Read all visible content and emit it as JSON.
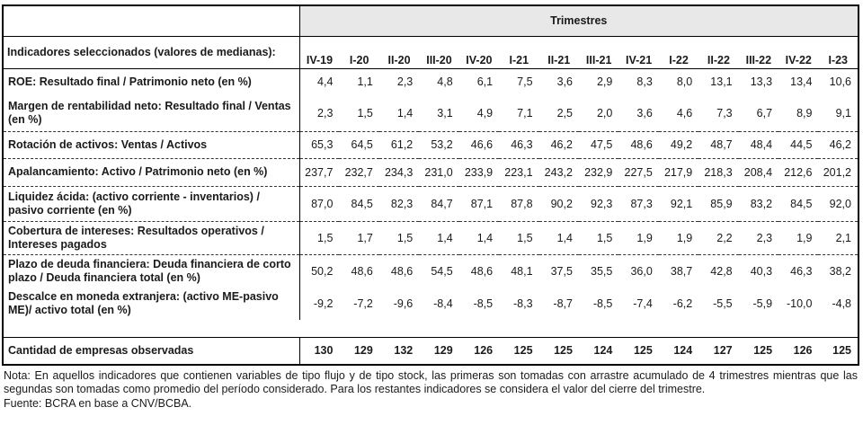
{
  "colors": {
    "header_bg": "#e8e8e8",
    "border": "#000000",
    "text": "#1a1a1a"
  },
  "notes": {
    "nota": "Nota: En aquellos indicadores que contienen variables de tipo flujo y de tipo stock, las primeras son tomadas con arrastre acumulado de 4 trimestres mientras que las segundas son tomadas como promedio del período considerado. Para los restantes indicadores se considera el valor del cierre del trimestre.",
    "fuente": "Fuente: BCRA en base a CNV/BCBA."
  },
  "chart_data": {
    "type": "table",
    "title": "Trimestres",
    "row_header": "Indicadores seleccionados (valores de medianas):",
    "number_format": "decimal-comma",
    "columns": [
      "IV-19",
      "I-20",
      "II-20",
      "III-20",
      "IV-20",
      "I-21",
      "II-21",
      "III-21",
      "IV-21",
      "I-22",
      "II-22",
      "III-22",
      "IV-22",
      "I-23"
    ],
    "rows": [
      {
        "label": "ROE: Resultado final / Patrimonio neto (en %)",
        "values": [
          4.4,
          1.1,
          2.3,
          4.8,
          6.1,
          7.5,
          3.6,
          2.9,
          8.3,
          8.0,
          13.1,
          13.3,
          13.4,
          10.6
        ]
      },
      {
        "label": "Margen de rentabilidad neto: Resultado final / Ventas (en %)",
        "values": [
          2.3,
          1.5,
          1.4,
          3.1,
          4.9,
          7.1,
          2.5,
          2.0,
          3.6,
          4.6,
          7.3,
          6.7,
          8.9,
          9.1
        ]
      },
      {
        "label": "Rotación de activos: Ventas / Activos",
        "values": [
          65.3,
          64.5,
          61.2,
          53.2,
          46.6,
          46.3,
          46.2,
          47.5,
          48.6,
          49.2,
          48.7,
          48.4,
          44.5,
          46.2
        ]
      },
      {
        "label": "Apalancamiento: Activo / Patrimonio neto (en %)",
        "values": [
          237.7,
          232.7,
          234.3,
          231.0,
          233.9,
          223.1,
          243.2,
          232.9,
          227.5,
          217.9,
          218.3,
          208.4,
          212.6,
          201.2
        ]
      },
      {
        "label": "Liquidez ácida: (activo corriente - inventarios) / pasivo corriente (en %)",
        "values": [
          87.0,
          84.5,
          82.3,
          84.7,
          87.1,
          87.8,
          90.2,
          92.3,
          87.3,
          92.1,
          85.9,
          83.2,
          84.5,
          92.0
        ]
      },
      {
        "label": "Cobertura de intereses: Resultados operativos / Intereses pagados",
        "values": [
          1.5,
          1.7,
          1.5,
          1.4,
          1.4,
          1.5,
          1.4,
          1.5,
          1.9,
          1.9,
          2.2,
          2.3,
          1.9,
          2.1
        ]
      },
      {
        "label": "Plazo de deuda financiera: Deuda financiera de corto plazo / Deuda financiera total (en %)",
        "values": [
          50.2,
          48.6,
          48.6,
          54.5,
          48.6,
          48.1,
          37.5,
          35.5,
          36.0,
          38.7,
          42.8,
          40.3,
          46.3,
          38.2
        ]
      },
      {
        "label": "Descalce en moneda extranjera: (activo ME-pasivo ME)/ activo total (en %)",
        "values": [
          -9.2,
          -7.2,
          -9.6,
          -8.4,
          -8.5,
          -8.3,
          -8.7,
          -8.5,
          -7.4,
          -6.2,
          -5.5,
          -5.9,
          -10.0,
          -4.8
        ]
      }
    ],
    "summary_row": {
      "label": "Cantidad de empresas observadas",
      "values": [
        130,
        129,
        132,
        129,
        126,
        125,
        125,
        124,
        125,
        124,
        127,
        125,
        126,
        125
      ]
    }
  }
}
